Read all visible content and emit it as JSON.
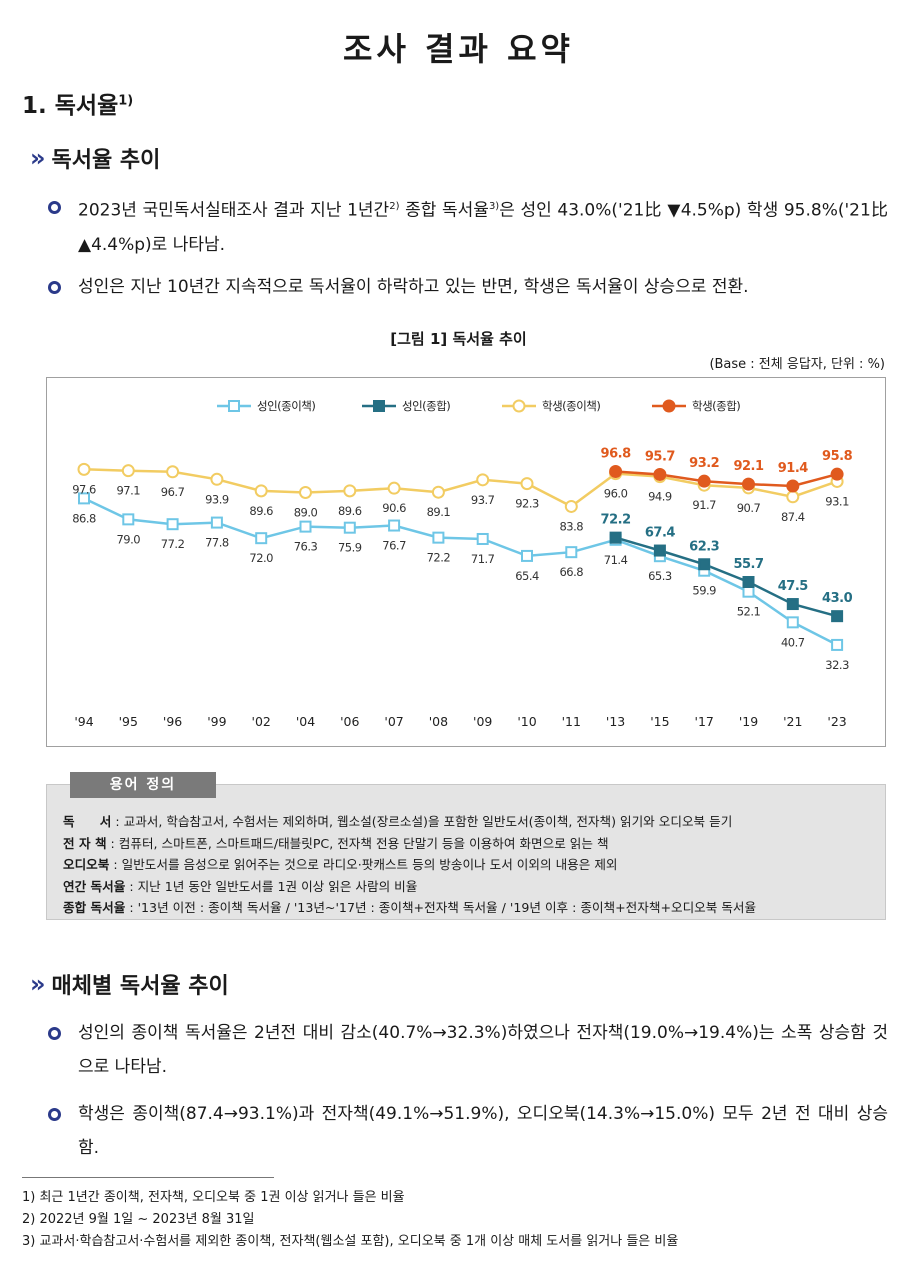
{
  "page_title": "조사 결과 요약",
  "section1": {
    "title": "1. 독서율",
    "sup": "1)"
  },
  "sub1": {
    "chevron": "»",
    "title": "독서율 추이"
  },
  "bullets1": [
    {
      "parts": [
        "2023년 국민독서실태조사 결과 지난 1년간",
        "2)",
        " 종합 독서율",
        "3)",
        "은 성인 43.0%('21比 ▼4.5%p) 학생 95.8%('21比 ▲4.4%p)로 나타남."
      ]
    },
    {
      "parts": [
        "성인은 지난 10년간 지속적으로 독서율이 하락하고 있는 반면, 학생은 독서율이 상승으로 전환."
      ]
    }
  ],
  "figure": {
    "caption": "[그림 1] 독서율 추이",
    "unit": "(Base : 전체 응답자, 단위 : %)"
  },
  "chart_data": {
    "type": "line",
    "categories": [
      "'94",
      "'95",
      "'96",
      "'99",
      "'02",
      "'04",
      "'06",
      "'07",
      "'08",
      "'09",
      "'10",
      "'11",
      "'13",
      "'15",
      "'17",
      "'19",
      "'21",
      "'23"
    ],
    "ylim": [
      20,
      110
    ],
    "series": [
      {
        "name": "성인(종이책)",
        "color": "#6ec6e6",
        "marker": "square-open",
        "values": [
          86.8,
          79.0,
          77.2,
          77.8,
          72.0,
          76.3,
          75.9,
          76.7,
          72.2,
          71.7,
          65.4,
          66.8,
          71.4,
          65.3,
          59.9,
          52.1,
          40.7,
          32.3
        ],
        "labels": [
          "86.8",
          "79.0",
          "77.2",
          "77.8",
          "72.0",
          "76.3",
          "75.9",
          "76.7",
          "72.2",
          "71.7",
          "65.4",
          "66.8",
          "71.4",
          "65.3",
          "59.9",
          "52.1",
          "40.7",
          "32.3"
        ]
      },
      {
        "name": "성인(종합)",
        "color": "#256f84",
        "marker": "square-filled",
        "values": [
          null,
          null,
          null,
          null,
          null,
          null,
          null,
          null,
          null,
          null,
          null,
          null,
          72.2,
          67.4,
          62.3,
          55.7,
          47.5,
          43.0
        ],
        "labels": [
          null,
          null,
          null,
          null,
          null,
          null,
          null,
          null,
          null,
          null,
          null,
          null,
          "72.2",
          "67.4",
          "62.3",
          "55.7",
          "47.5",
          "43.0"
        ]
      },
      {
        "name": "학생(종이책)",
        "color": "#f2cc62",
        "marker": "circle-open",
        "values": [
          97.6,
          97.1,
          96.7,
          93.9,
          89.6,
          89.0,
          89.6,
          90.6,
          89.1,
          93.7,
          92.3,
          83.8,
          96.0,
          94.9,
          91.7,
          90.7,
          87.4,
          93.1
        ],
        "labels": [
          "97.6",
          "97.1",
          "96.7",
          "93.9",
          "89.6",
          "89.0",
          "89.6",
          "90.6",
          "89.1",
          "93.7",
          "92.3",
          "83.8",
          "96.0",
          "94.9",
          "91.7",
          "90.7",
          "87.4",
          "93.1"
        ]
      },
      {
        "name": "학생(종합)",
        "color": "#e05a1e",
        "marker": "circle-filled",
        "values": [
          null,
          null,
          null,
          null,
          null,
          null,
          null,
          null,
          null,
          null,
          null,
          null,
          96.8,
          95.7,
          93.2,
          92.1,
          91.4,
          95.8
        ],
        "labels": [
          null,
          null,
          null,
          null,
          null,
          null,
          null,
          null,
          null,
          null,
          null,
          null,
          "96.8",
          "95.7",
          "93.2",
          "92.1",
          "91.4",
          "95.8"
        ]
      }
    ]
  },
  "terms": {
    "tab": "용어 정의",
    "items": [
      {
        "term": "독　　서",
        "desc": " : 교과서, 학습참고서, 수험서는 제외하며, 웹소설(장르소설)을 포함한 일반도서(종이책, 전자책) 읽기와 오디오북 듣기"
      },
      {
        "term": "전 자 책",
        "desc": " : 컴퓨터, 스마트폰, 스마트패드/태블릿PC, 전자책 전용 단말기 등을 이용하여 화면으로 읽는 책"
      },
      {
        "term": "오디오북",
        "desc": " : 일반도서를 음성으로 읽어주는 것으로 라디오·팟캐스트 등의 방송이나 도서 이외의 내용은 제외"
      },
      {
        "term": "연간 독서율",
        "desc": " : 지난 1년 동안 일반도서를 1권 이상 읽은 사람의 비율"
      },
      {
        "term": "종합 독서율",
        "desc": " : '13년 이전 : 종이책 독서율 / '13년~'17년 : 종이책+전자책 독서율 / '19년 이후 : 종이책+전자책+오디오북 독서율"
      }
    ]
  },
  "sub2": {
    "chevron": "»",
    "title": "매체별 독서율 추이"
  },
  "bullets2": [
    {
      "text": "성인의 종이책 독서율은 2년전 대비 감소(40.7%→32.3%)하였으나 전자책(19.0%→19.4%)는 소폭 상승함 것으로 나타남."
    },
    {
      "text": "학생은 종이책(87.4→93.1%)과 전자책(49.1%→51.9%), 오디오북(14.3%→15.0%) 모두 2년 전 대비 상승함."
    }
  ],
  "footnotes": [
    "1) 최근 1년간 종이책, 전자책, 오디오북 중 1권 이상 읽거나 들은 비율",
    "2) 2022년 9월 1일 ~ 2023년 8월 31일",
    "3) 교과서·학습참고서·수험서를 제외한 종이책, 전자책(웹소설 포함), 오디오북 중 1개 이상 매체 도서를 읽거나 들은 비율"
  ]
}
